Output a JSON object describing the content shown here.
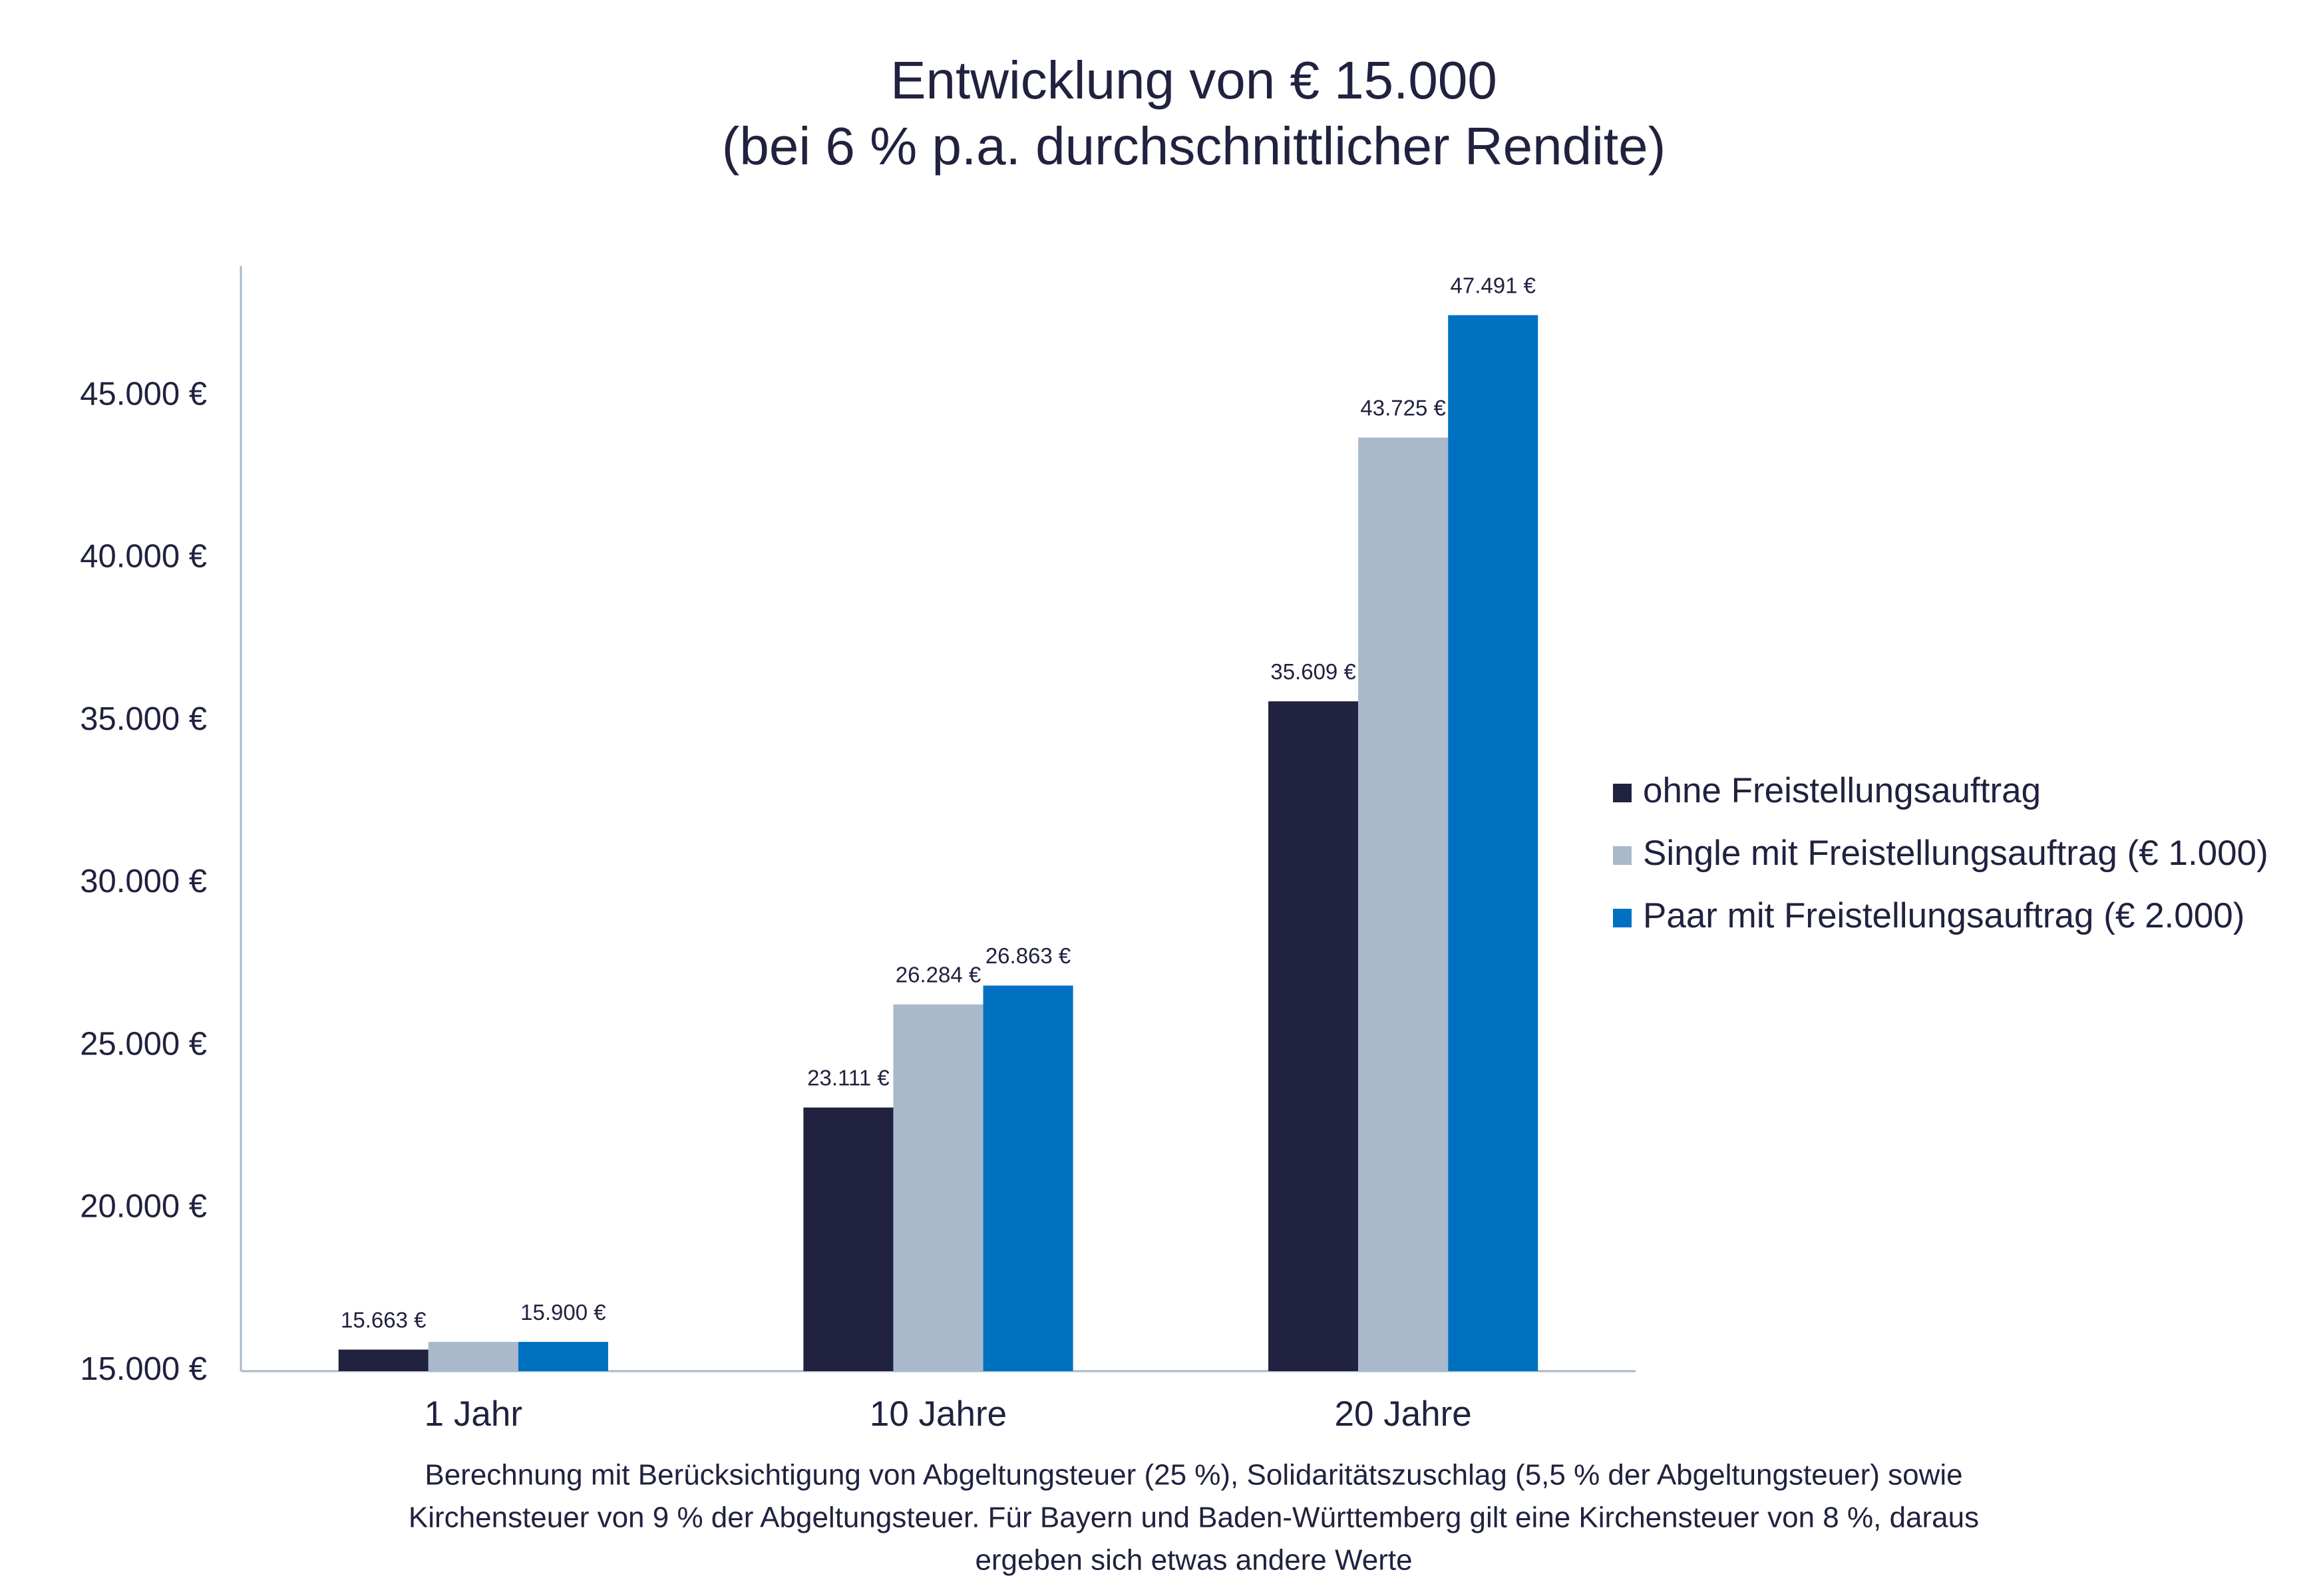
{
  "chart_data": {
    "type": "bar",
    "title": "Entwicklung von € 15.000",
    "subtitle": "(bei 6 % p.a. durchschnittlicher Rendite)",
    "categories": [
      "1 Jahr",
      "10 Jahre",
      "20 Jahre"
    ],
    "series": [
      {
        "name": "ohne Freistellungsauftrag",
        "color": "#20223f",
        "values": [
          15663,
          23111,
          35609
        ],
        "value_labels": [
          "15.663 €",
          "23.111 €",
          "35.609 €"
        ]
      },
      {
        "name": "Single mit Freistellungsauftrag (€ 1.000)",
        "color": "#a9b8ca",
        "values": [
          15900,
          26284,
          43725
        ],
        "value_labels": [
          null,
          "26.284 €",
          "43.725 €"
        ]
      },
      {
        "name": "Paar mit Freistellungsauftrag (€ 2.000)",
        "color": "#0071c1",
        "values": [
          15900,
          26863,
          47491
        ],
        "value_labels": [
          "15.900 €",
          "26.863 €",
          "47.491 €"
        ]
      }
    ],
    "ylim": [
      15000,
      49000
    ],
    "yticks": [
      {
        "value": 15000,
        "label": "15.000 €"
      },
      {
        "value": 20000,
        "label": "20.000 €"
      },
      {
        "value": 25000,
        "label": "25.000 €"
      },
      {
        "value": 30000,
        "label": "30.000 €"
      },
      {
        "value": 35000,
        "label": "35.000 €"
      },
      {
        "value": 40000,
        "label": "40.000 €"
      },
      {
        "value": 45000,
        "label": "45.000 €"
      }
    ],
    "grid": false,
    "legend": "right",
    "note": [
      "Berechnung mit Berücksichtigung von Abgeltungsteuer (25 %), Solidaritätszuschlag (5,5 % der Abgeltungsteuer) sowie",
      "Kirchensteuer von 9 % der Abgeltungsteuer. Für Bayern und Baden-Württemberg gilt eine Kirchensteuer von 8 %, daraus",
      "ergeben sich etwas andere Werte"
    ]
  }
}
